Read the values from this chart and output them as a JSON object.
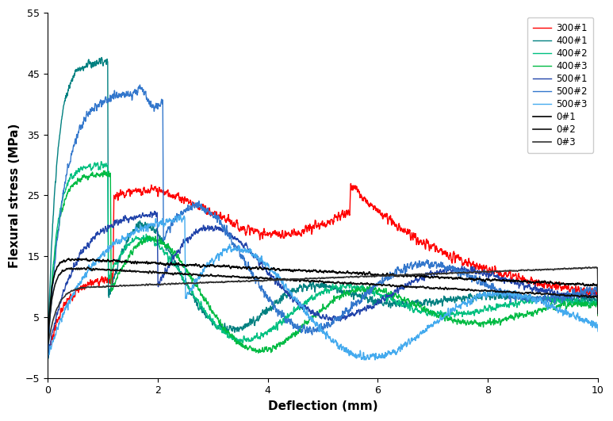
{
  "xlabel": "Deflection (mm)",
  "ylabel": "Flexural stress (MPa)",
  "xlim": [
    0,
    10
  ],
  "ylim": [
    -5,
    55
  ],
  "xticks": [
    0,
    2,
    4,
    6,
    8,
    10
  ],
  "yticks": [
    -5,
    5,
    15,
    25,
    35,
    45,
    55
  ],
  "series": {
    "300#1": {
      "color": "#FF0000",
      "lw": 1.0
    },
    "400#1": {
      "color": "#008080",
      "lw": 1.0
    },
    "400#2": {
      "color": "#00C080",
      "lw": 1.0
    },
    "400#3": {
      "color": "#00BB44",
      "lw": 1.0
    },
    "500#1": {
      "color": "#2244AA",
      "lw": 1.0
    },
    "500#2": {
      "color": "#3377CC",
      "lw": 1.0
    },
    "500#3": {
      "color": "#44AAEE",
      "lw": 1.0
    },
    "0#1": {
      "color": "#000000",
      "lw": 1.2
    },
    "0#2": {
      "color": "#111111",
      "lw": 1.2
    },
    "0#3": {
      "color": "#333333",
      "lw": 1.2
    }
  },
  "background_color": "#FFFFFF",
  "legend_fontsize": 8.5,
  "axis_fontsize": 11,
  "tick_fontsize": 9
}
